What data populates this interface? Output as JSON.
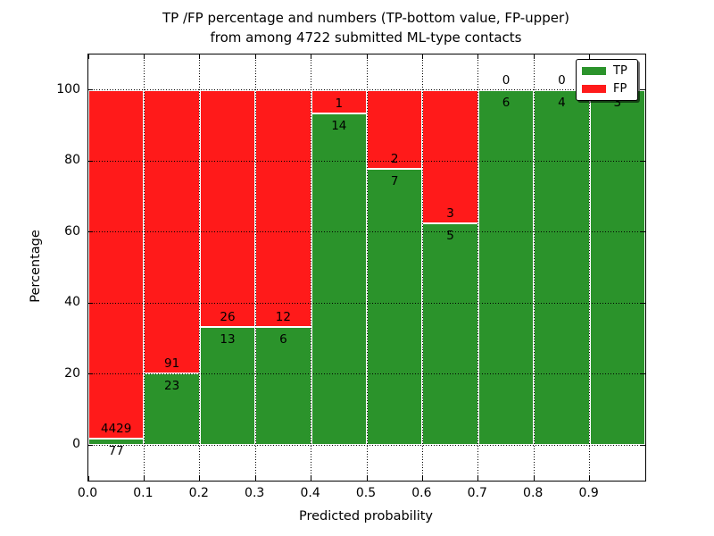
{
  "figure": {
    "title_line1": "TP /FP percentage and numbers (TP-bottom value, FP-upper)",
    "title_line2": "from among 4722 submitted ML-type contacts",
    "xlabel": "Predicted probability",
    "ylabel": "Percentage"
  },
  "legend": {
    "position": "upper right",
    "items": [
      {
        "label": "TP",
        "color": "#2b932b"
      },
      {
        "label": "FP",
        "color": "#ff1a1a"
      }
    ]
  },
  "chart_data": {
    "type": "bar",
    "stacked": true,
    "normalized_to_percent": true,
    "title": "TP /FP percentage and numbers (TP-bottom value, FP-upper) from among 4722 submitted ML-type contacts",
    "xlabel": "Predicted probability",
    "ylabel": "Percentage",
    "total_contacts": 4722,
    "bin_width": 0.1,
    "bin_starts": [
      0.0,
      0.1,
      0.2,
      0.3,
      0.4,
      0.5,
      0.6,
      0.7,
      0.8,
      0.9
    ],
    "series": [
      {
        "name": "TP",
        "color": "#2b932b",
        "values": [
          77,
          23,
          13,
          6,
          14,
          7,
          5,
          6,
          4,
          3
        ]
      },
      {
        "name": "FP",
        "color": "#ff1a1a",
        "values": [
          4429,
          91,
          26,
          12,
          1,
          2,
          3,
          0,
          0,
          0
        ]
      }
    ],
    "tp_percent_per_bin": [
      1.71,
      20.18,
      33.33,
      33.33,
      93.33,
      77.78,
      62.5,
      100,
      100,
      100
    ],
    "xlim": [
      0,
      1
    ],
    "ylim": [
      -10,
      110
    ],
    "xtick_values": [
      0.0,
      0.1,
      0.2,
      0.3,
      0.4,
      0.5,
      0.6,
      0.7,
      0.8,
      0.9
    ],
    "xtick_labels": [
      "0.0",
      "0.1",
      "0.2",
      "0.3",
      "0.4",
      "0.5",
      "0.6",
      "0.7",
      "0.8",
      "0.9"
    ],
    "ytick_values": [
      0,
      20,
      40,
      60,
      80,
      100
    ],
    "ytick_labels": [
      "0",
      "20",
      "40",
      "60",
      "80",
      "100"
    ],
    "grid": "dotted",
    "grid_color": "#000000",
    "bar_edge_color": "#ffffff",
    "legend_position": "upper right"
  }
}
